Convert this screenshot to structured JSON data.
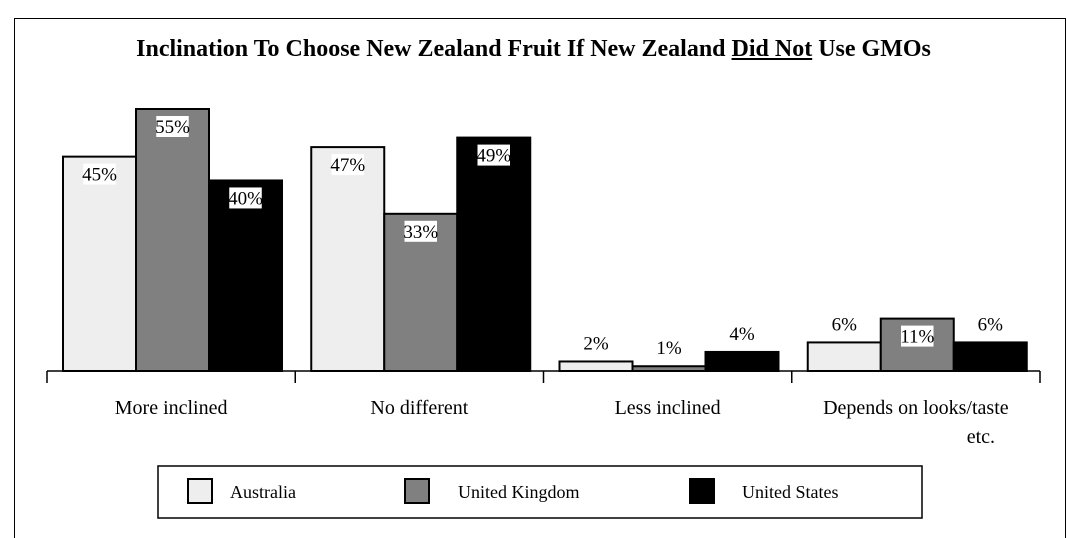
{
  "chart_data": {
    "type": "bar",
    "title_parts": [
      "Inclination To Choose New Zealand Fruit If New Zealand ",
      "Did Not",
      " Use GMOs"
    ],
    "categories": [
      [
        "More inclined"
      ],
      [
        "No different"
      ],
      [
        "Less inclined"
      ],
      [
        "Depends on looks/taste",
        "etc."
      ]
    ],
    "series": [
      {
        "name": "Australia",
        "color": "#eeeeee",
        "values": [
          45,
          47,
          2,
          6
        ],
        "labels": [
          "45%",
          "47%",
          "2%",
          "6%"
        ]
      },
      {
        "name": "United Kingdom",
        "color": "#808080",
        "values": [
          55,
          33,
          1,
          11
        ],
        "labels": [
          "55%",
          "33%",
          "1%",
          "11%"
        ]
      },
      {
        "name": "United States",
        "color": "#000000",
        "values": [
          40,
          49,
          4,
          6
        ],
        "labels": [
          "40%",
          "49%",
          "4%",
          "6%"
        ]
      }
    ],
    "ylim": [
      0,
      60
    ],
    "legend_position": "bottom",
    "grid": false
  }
}
